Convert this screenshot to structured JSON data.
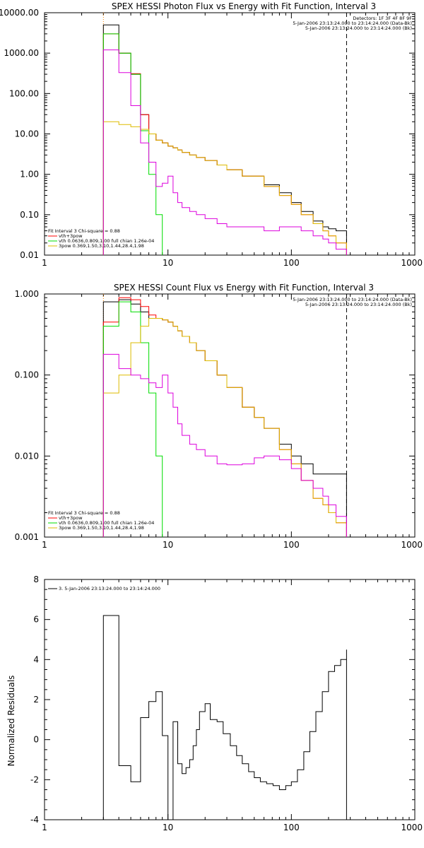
{
  "chart_data": [
    {
      "type": "line",
      "title": "SPEX HESSI Photon Flux vs Energy with Fit Function, Interval 3",
      "xlabel": "",
      "ylabel": "",
      "xscale": "log",
      "yscale": "log",
      "xlim": [
        1,
        1000
      ],
      "ylim": [
        0.01,
        10000
      ],
      "x_ticks": [
        1,
        10,
        100,
        1000
      ],
      "x_tick_labels": [
        "1",
        "10",
        "100",
        "1000"
      ],
      "y_ticks": [
        0.01,
        0.1,
        1,
        10,
        100,
        1000,
        10000
      ],
      "y_tick_labels": [
        "0.01",
        "0.10",
        "1.00",
        "10.00",
        "100.00",
        "1000.00",
        "10000.00"
      ],
      "vlines": [
        3,
        280
      ],
      "info_top_right": [
        "Detectors: 1F 3F 4F 8F 9F",
        "5-Jan-2006 23:13:24.000 to 23:14:24.000 (Data-Bk)",
        "5-Jan-2006 23:13:24.000 to 23:14:24.000 (Bk)"
      ],
      "legend_title": "Fit Interval 3   Chi-square = 0.88",
      "legend": [
        {
          "label": "vth+3pow",
          "color": "#ff0000"
        },
        {
          "label": "vth 0.0636,0.809,1.00  full chian 1.26e-04",
          "color": "#00dd00"
        },
        {
          "label": "3pow 0.369,1.50,3.10,1.44,28.4,1.98",
          "color": "#ddbb00"
        }
      ],
      "series": [
        {
          "color": "#000000",
          "x": [
            3,
            4,
            5,
            6,
            7,
            8,
            9,
            10,
            11,
            12,
            13,
            15,
            17,
            20,
            25,
            30,
            40,
            60,
            80,
            100,
            120,
            150,
            180,
            200,
            230,
            280
          ],
          "y": [
            5000,
            1000,
            300,
            30,
            10,
            7,
            6,
            5,
            4.5,
            4,
            3.5,
            3,
            2.6,
            2.2,
            1.7,
            1.3,
            0.9,
            0.55,
            0.35,
            0.2,
            0.12,
            0.07,
            0.05,
            0.045,
            0.04,
            0.03
          ]
        },
        {
          "color": "#ff0000",
          "x": [
            3,
            4,
            5,
            6,
            7,
            8,
            9,
            10,
            11,
            12,
            13,
            15,
            17,
            20,
            25,
            30,
            40,
            60,
            80,
            100,
            120,
            150,
            180,
            200,
            230,
            280
          ],
          "y": [
            3000,
            1000,
            310,
            30,
            10,
            7,
            6,
            5,
            4.5,
            4,
            3.5,
            3,
            2.6,
            2.2,
            1.7,
            1.3,
            0.9,
            0.5,
            0.3,
            0.18,
            0.1,
            0.06,
            0.04,
            0.03,
            0.02,
            0.014
          ]
        },
        {
          "color": "#00dd00",
          "x": [
            3,
            4,
            5,
            6,
            7,
            8,
            9
          ],
          "y": [
            3000,
            1000,
            300,
            12,
            1,
            0.1,
            0.01
          ]
        },
        {
          "color": "#ddbb00",
          "x": [
            3,
            4,
            5,
            6,
            7,
            8,
            9,
            10,
            11,
            12,
            13,
            15,
            17,
            20,
            25,
            30,
            40,
            60,
            80,
            100,
            120,
            150,
            180,
            200,
            230,
            280
          ],
          "y": [
            20,
            17,
            15,
            13,
            10,
            7,
            6,
            5,
            4.5,
            4,
            3.5,
            3,
            2.6,
            2.2,
            1.7,
            1.3,
            0.9,
            0.5,
            0.3,
            0.18,
            0.1,
            0.06,
            0.04,
            0.03,
            0.02,
            0.014
          ]
        },
        {
          "color": "#dd00dd",
          "x": [
            3,
            4,
            5,
            6,
            7,
            8,
            9,
            10,
            11,
            12,
            13,
            15,
            17,
            20,
            25,
            30,
            40,
            60,
            80,
            100,
            120,
            150,
            180,
            200,
            230,
            280
          ],
          "y": [
            1200,
            330,
            50,
            6,
            2,
            0.5,
            0.6,
            0.9,
            0.35,
            0.2,
            0.15,
            0.12,
            0.1,
            0.08,
            0.06,
            0.05,
            0.05,
            0.04,
            0.05,
            0.05,
            0.04,
            0.03,
            0.025,
            0.02,
            0.014,
            0.01
          ]
        }
      ]
    },
    {
      "type": "line",
      "title": "SPEX HESSI Count Flux vs Energy with Fit Function, Interval 3",
      "xlabel": "",
      "ylabel": "",
      "xscale": "log",
      "yscale": "log",
      "xlim": [
        1,
        1000
      ],
      "ylim": [
        0.001,
        1
      ],
      "x_ticks": [
        1,
        10,
        100,
        1000
      ],
      "x_tick_labels": [
        "1",
        "10",
        "100",
        "1000"
      ],
      "y_ticks": [
        0.001,
        0.01,
        0.1,
        1
      ],
      "y_tick_labels": [
        "0.001",
        "0.010",
        "0.100",
        "1.000"
      ],
      "vlines": [
        3,
        280
      ],
      "info_top_right": [
        "5-Jan-2006 23:13:24.000 to 23:14:24.000 (Data-Bk)",
        "5-Jan-2006 23:13:24.000 to 23:14:24.000 (Bk)"
      ],
      "legend_title": "Fit Interval 3   Chi-square = 0.88",
      "legend": [
        {
          "label": "vth+3pow",
          "color": "#ff0000"
        },
        {
          "label": "vth 0.0636,0.809,1.00  full chian 1.26e-04",
          "color": "#00dd00"
        },
        {
          "label": "3pow 0.369,1.50,3.10,1.44,28.4,1.98",
          "color": "#ddbb00"
        }
      ],
      "series": [
        {
          "color": "#000000",
          "x": [
            3,
            4,
            5,
            6,
            7,
            8,
            9,
            10,
            11,
            12,
            13,
            15,
            17,
            20,
            25,
            30,
            40,
            50,
            60,
            80,
            100,
            120,
            150,
            180,
            200,
            230,
            280
          ],
          "y": [
            0.8,
            0.85,
            0.75,
            0.6,
            0.5,
            0.5,
            0.48,
            0.45,
            0.4,
            0.35,
            0.3,
            0.25,
            0.2,
            0.15,
            0.1,
            0.07,
            0.04,
            0.03,
            0.022,
            0.014,
            0.01,
            0.008,
            0.006,
            0.006,
            0.006,
            0.006,
            0.004
          ]
        },
        {
          "color": "#ff0000",
          "x": [
            3,
            4,
            5,
            6,
            7,
            8,
            9,
            10,
            11,
            12,
            13,
            15,
            17,
            20,
            25,
            30,
            40,
            50,
            60,
            80,
            100,
            120,
            150,
            180,
            200,
            230,
            280
          ],
          "y": [
            0.45,
            0.9,
            0.85,
            0.7,
            0.55,
            0.5,
            0.48,
            0.45,
            0.4,
            0.35,
            0.3,
            0.25,
            0.2,
            0.15,
            0.1,
            0.07,
            0.04,
            0.03,
            0.022,
            0.012,
            0.008,
            0.005,
            0.003,
            0.0025,
            0.002,
            0.0015,
            0.0012
          ]
        },
        {
          "color": "#00dd00",
          "x": [
            3,
            4,
            5,
            6,
            7,
            8,
            9
          ],
          "y": [
            0.4,
            0.8,
            0.6,
            0.25,
            0.06,
            0.01,
            0.002
          ]
        },
        {
          "color": "#ddbb00",
          "x": [
            3,
            4,
            5,
            6,
            7,
            8,
            9,
            10,
            11,
            12,
            13,
            15,
            17,
            20,
            25,
            30,
            40,
            50,
            60,
            80,
            100,
            120,
            150,
            180,
            200,
            230,
            280
          ],
          "y": [
            0.06,
            0.1,
            0.25,
            0.4,
            0.5,
            0.5,
            0.48,
            0.45,
            0.4,
            0.35,
            0.3,
            0.25,
            0.2,
            0.15,
            0.1,
            0.07,
            0.04,
            0.03,
            0.022,
            0.012,
            0.008,
            0.005,
            0.003,
            0.0025,
            0.002,
            0.0015,
            0.0012
          ]
        },
        {
          "color": "#dd00dd",
          "x": [
            3,
            4,
            5,
            6,
            7,
            8,
            9,
            10,
            11,
            12,
            13,
            15,
            17,
            20,
            25,
            30,
            40,
            50,
            60,
            80,
            100,
            120,
            150,
            180,
            200,
            230,
            280
          ],
          "y": [
            0.18,
            0.12,
            0.1,
            0.09,
            0.08,
            0.07,
            0.1,
            0.06,
            0.04,
            0.025,
            0.018,
            0.014,
            0.012,
            0.01,
            0.008,
            0.0078,
            0.008,
            0.0095,
            0.01,
            0.009,
            0.007,
            0.005,
            0.004,
            0.0032,
            0.0025,
            0.0018,
            0.0012
          ]
        }
      ]
    },
    {
      "type": "line",
      "title": "",
      "xlabel": "",
      "ylabel": "Normalized Residuals",
      "xscale": "log",
      "yscale": "linear",
      "xlim": [
        1,
        1000
      ],
      "ylim": [
        -4,
        8
      ],
      "x_ticks": [
        1,
        10,
        100,
        1000
      ],
      "x_tick_labels": [
        "1",
        "10",
        "100",
        "1000"
      ],
      "y_ticks": [
        -4,
        -2,
        0,
        2,
        4,
        6,
        8
      ],
      "y_tick_labels": [
        "-4",
        "-2",
        "0",
        "2",
        "4",
        "6",
        "8"
      ],
      "legend": [
        {
          "label": "3. 5-Jan-2006 23:13:24.000 to 23:14:24.000",
          "color": "#000000"
        }
      ],
      "series": [
        {
          "color": "#000000",
          "x": [
            3,
            4,
            5,
            6,
            7,
            8,
            9,
            10,
            11,
            12,
            13,
            14,
            15,
            16,
            17,
            18,
            20,
            22,
            25,
            28,
            32,
            36,
            40,
            45,
            50,
            56,
            63,
            71,
            80,
            90,
            100,
            112,
            126,
            141,
            158,
            178,
            200,
            224,
            251,
            280
          ],
          "y": [
            6.2,
            -1.3,
            -2.1,
            1.1,
            1.9,
            2.4,
            0.2,
            -4.0,
            0.9,
            -1.2,
            -1.7,
            -1.4,
            -1.0,
            -0.3,
            0.5,
            1.4,
            1.8,
            1.0,
            0.9,
            0.3,
            -0.3,
            -0.8,
            -1.2,
            -1.6,
            -1.9,
            -2.1,
            -2.2,
            -2.3,
            -2.5,
            -2.3,
            -2.1,
            -1.5,
            -0.6,
            0.4,
            1.4,
            2.4,
            3.4,
            3.7,
            4.0,
            4.5
          ]
        }
      ]
    }
  ]
}
